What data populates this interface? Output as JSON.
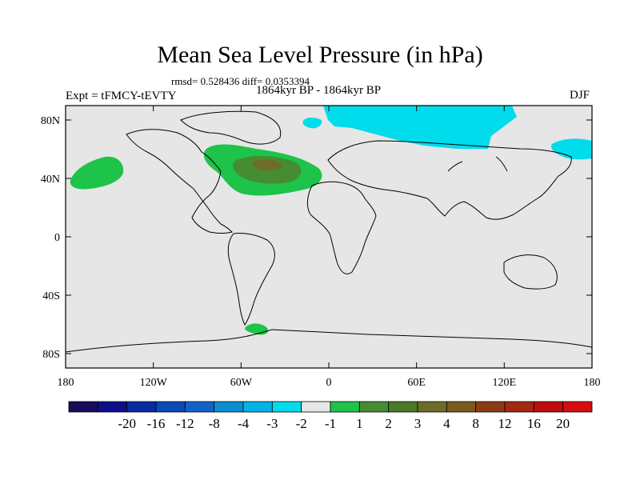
{
  "figure": {
    "title": "Mean Sea Level Pressure (in hPa)",
    "stats": "rmsd= 0.528436 diff= 0.0353394",
    "subtitle": "1864kyr BP - 1864kyr BP",
    "left_string": "Expt = tFMCY-tEVTY",
    "season": "DJF"
  },
  "map": {
    "background_color": "#e6e6e6",
    "coastline_color": "#000000",
    "x_ticks": [
      "180",
      "120W",
      "60W",
      "0",
      "60E",
      "120E",
      "180"
    ],
    "y_ticks": [
      "80N",
      "40N",
      "0",
      "40S",
      "80S"
    ],
    "anomaly_regions": [
      {
        "name": "north-atlantic-high",
        "level": "2",
        "color": "#1ec34a"
      },
      {
        "name": "north-atlantic-core",
        "level": "3",
        "color": "#468c32"
      },
      {
        "name": "north-atlantic-peak",
        "level": "4",
        "color": "#6e6c2a"
      },
      {
        "name": "north-pacific-high",
        "level": "2",
        "color": "#1ec34a"
      },
      {
        "name": "arctic-eurasia-low",
        "level": "-2",
        "color": "#00dcec"
      },
      {
        "name": "drake-passage-high",
        "level": "2",
        "color": "#1ec34a"
      }
    ]
  },
  "colorbar": {
    "colors": [
      "#1a0a5c",
      "#0e0e8c",
      "#0a2aa4",
      "#0a4ab8",
      "#1064c8",
      "#0b8fd2",
      "#00b4e6",
      "#00dcec",
      "#e6e6e6",
      "#1ec34a",
      "#468c32",
      "#4a7a2a",
      "#6e6c2a",
      "#7a5a1e",
      "#8c3c14",
      "#a42812",
      "#c00e0e",
      "#d80c0c"
    ],
    "labels": [
      "-20",
      "-16",
      "-12",
      "-8",
      "-4",
      "-3",
      "-2",
      "-1",
      "1",
      "2",
      "3",
      "4",
      "8",
      "12",
      "16",
      "20"
    ]
  }
}
